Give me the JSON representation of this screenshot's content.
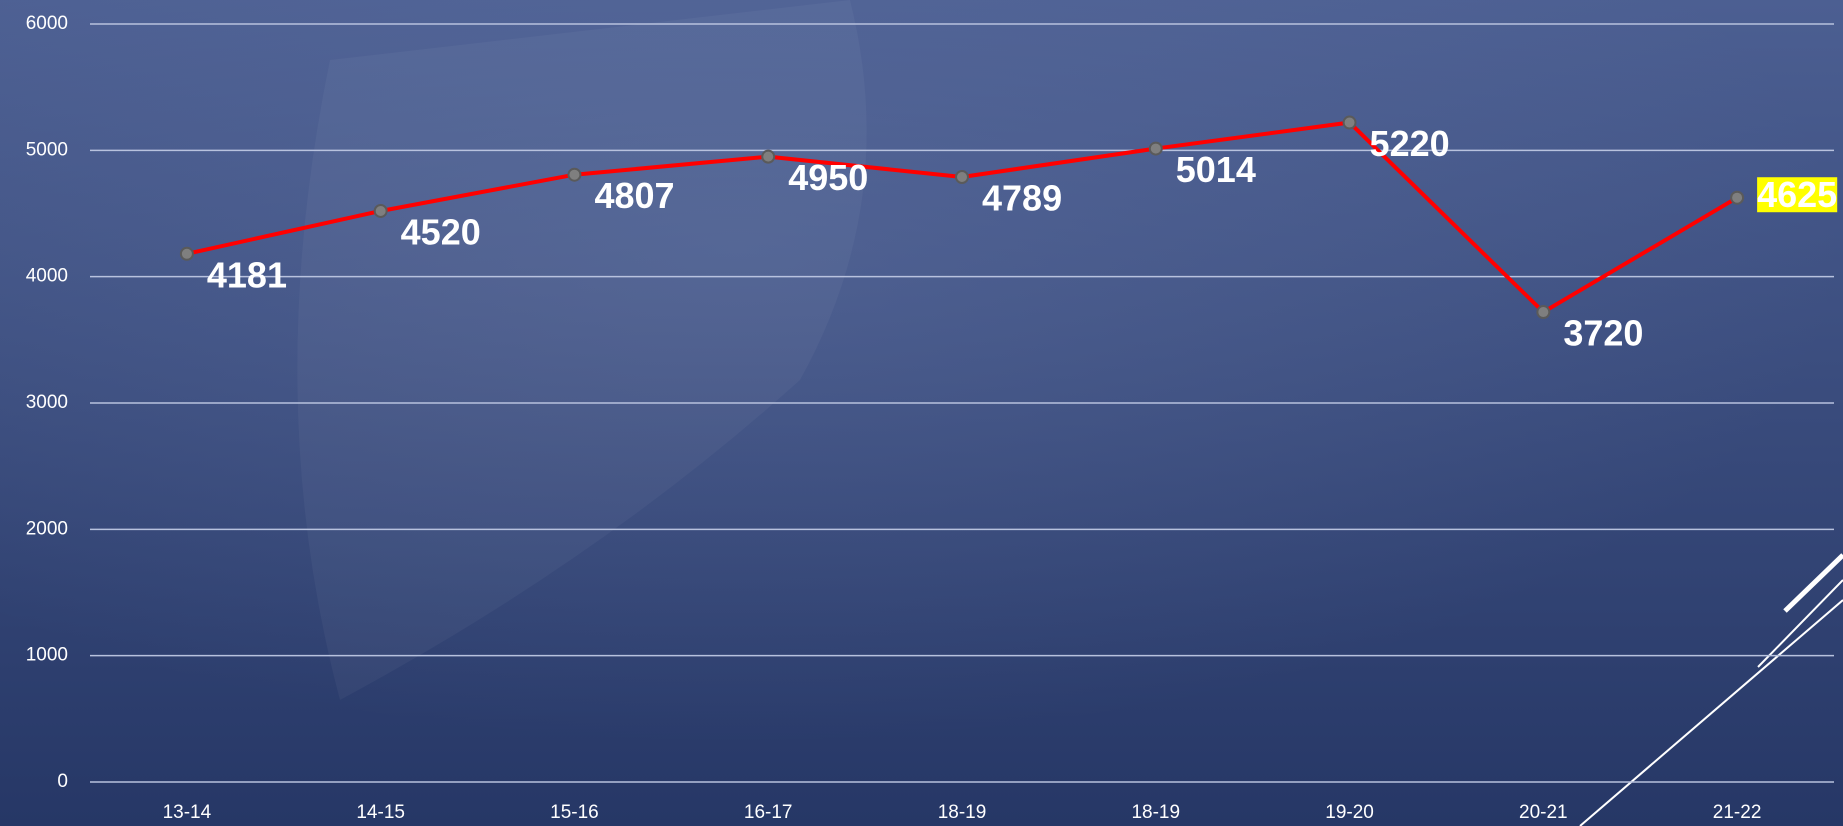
{
  "chart_data": {
    "type": "line",
    "categories": [
      "13-14",
      "14-15",
      "15-16",
      "16-17",
      "18-19",
      "18-19",
      "19-20",
      "20-21",
      "21-22"
    ],
    "series": [
      {
        "color": "#ff0000",
        "values": [
          4181,
          4520,
          4807,
          4950,
          4789,
          5014,
          5220,
          3720,
          4625
        ]
      }
    ],
    "ylim": [
      0,
      6000
    ],
    "yticks": [
      0,
      1000,
      2000,
      3000,
      4000,
      5000,
      6000
    ],
    "grid": true,
    "label_highlight_color": "#ffff00"
  }
}
